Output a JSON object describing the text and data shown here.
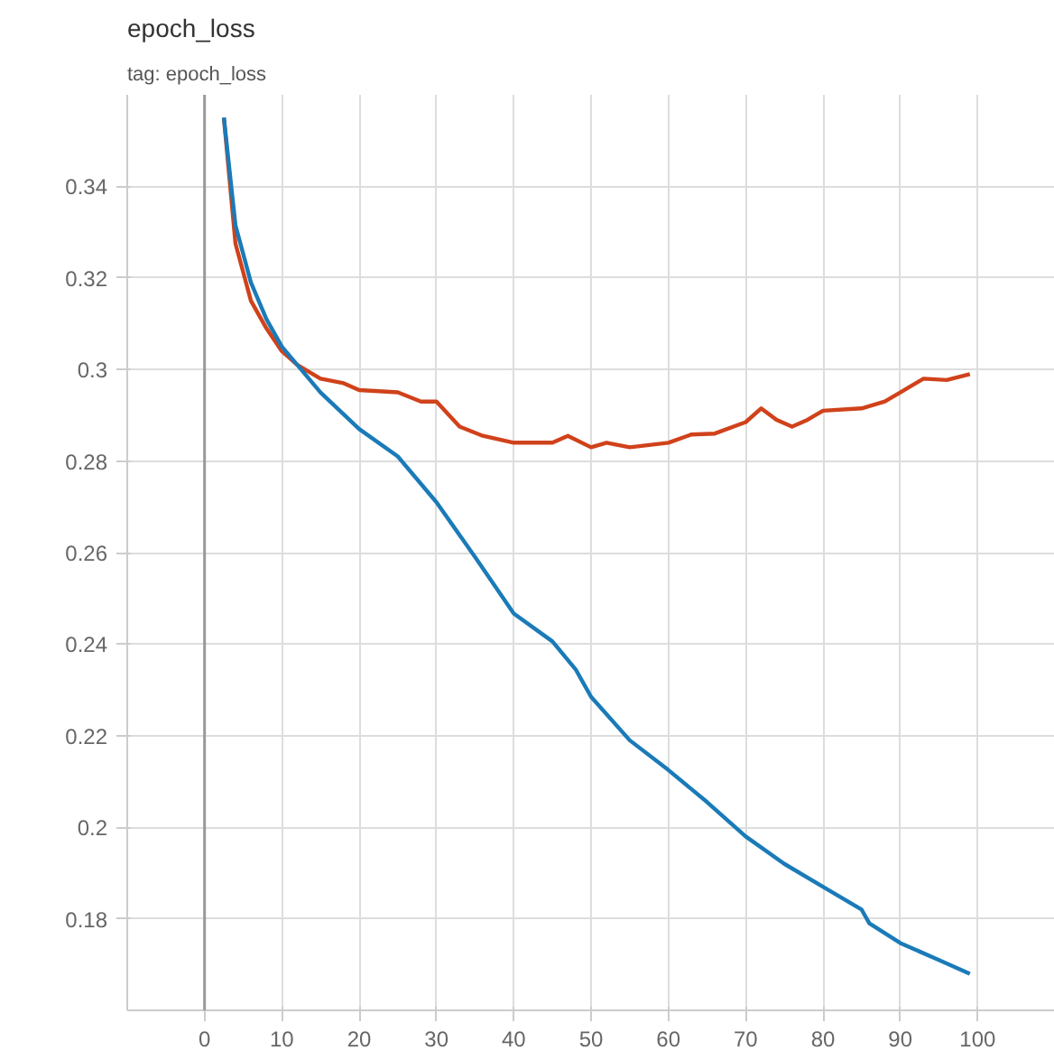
{
  "chart_data": {
    "type": "line",
    "title": "epoch_loss",
    "subtitle": "tag: epoch_loss",
    "xlim": [
      -10,
      110
    ],
    "xticks": [
      0,
      10,
      20,
      30,
      40,
      50,
      60,
      70,
      80,
      90,
      100
    ],
    "ylim": [
      0.16,
      0.36
    ],
    "yticks": [
      0.18,
      0.2,
      0.22,
      0.24,
      0.26,
      0.28,
      0.3,
      0.32,
      0.34
    ],
    "grid": true,
    "line_style": "solid",
    "ref_lines": [
      {
        "axis": "x",
        "value": 0,
        "label": null,
        "color": "#999999"
      }
    ],
    "series": [
      {
        "color": "#d0421b",
        "x": [
          2.5,
          4,
          6,
          8,
          10,
          12,
          15,
          18,
          20,
          25,
          28,
          30,
          33,
          36,
          40,
          45,
          47,
          50,
          52,
          55,
          60,
          63,
          66,
          70,
          72,
          74,
          76,
          78,
          80,
          85,
          88,
          90,
          93,
          96,
          99
        ],
        "values": [
          0.355,
          0.3275,
          0.315,
          0.309,
          0.304,
          0.301,
          0.298,
          0.297,
          0.2955,
          0.295,
          0.293,
          0.293,
          0.2875,
          0.2855,
          0.284,
          0.284,
          0.2855,
          0.283,
          0.284,
          0.283,
          0.284,
          0.2858,
          0.286,
          0.2885,
          0.2915,
          0.289,
          0.2875,
          0.289,
          0.291,
          0.2915,
          0.293,
          0.295,
          0.298,
          0.2977,
          0.299
        ]
      },
      {
        "color": "#1a7bb8",
        "x": [
          2.5,
          4,
          6,
          8,
          10,
          15,
          20,
          25,
          30,
          35,
          40,
          45,
          48,
          50,
          55,
          60,
          65,
          70,
          75,
          80,
          85,
          86,
          90,
          95,
          99
        ],
        "values": [
          0.355,
          0.3315,
          0.319,
          0.311,
          0.305,
          0.295,
          0.287,
          0.281,
          0.271,
          0.259,
          0.2467,
          0.2406,
          0.2345,
          0.2285,
          0.219,
          0.2125,
          0.2055,
          0.198,
          0.192,
          0.187,
          0.182,
          0.179,
          0.1747,
          0.171,
          0.168
        ]
      }
    ]
  }
}
